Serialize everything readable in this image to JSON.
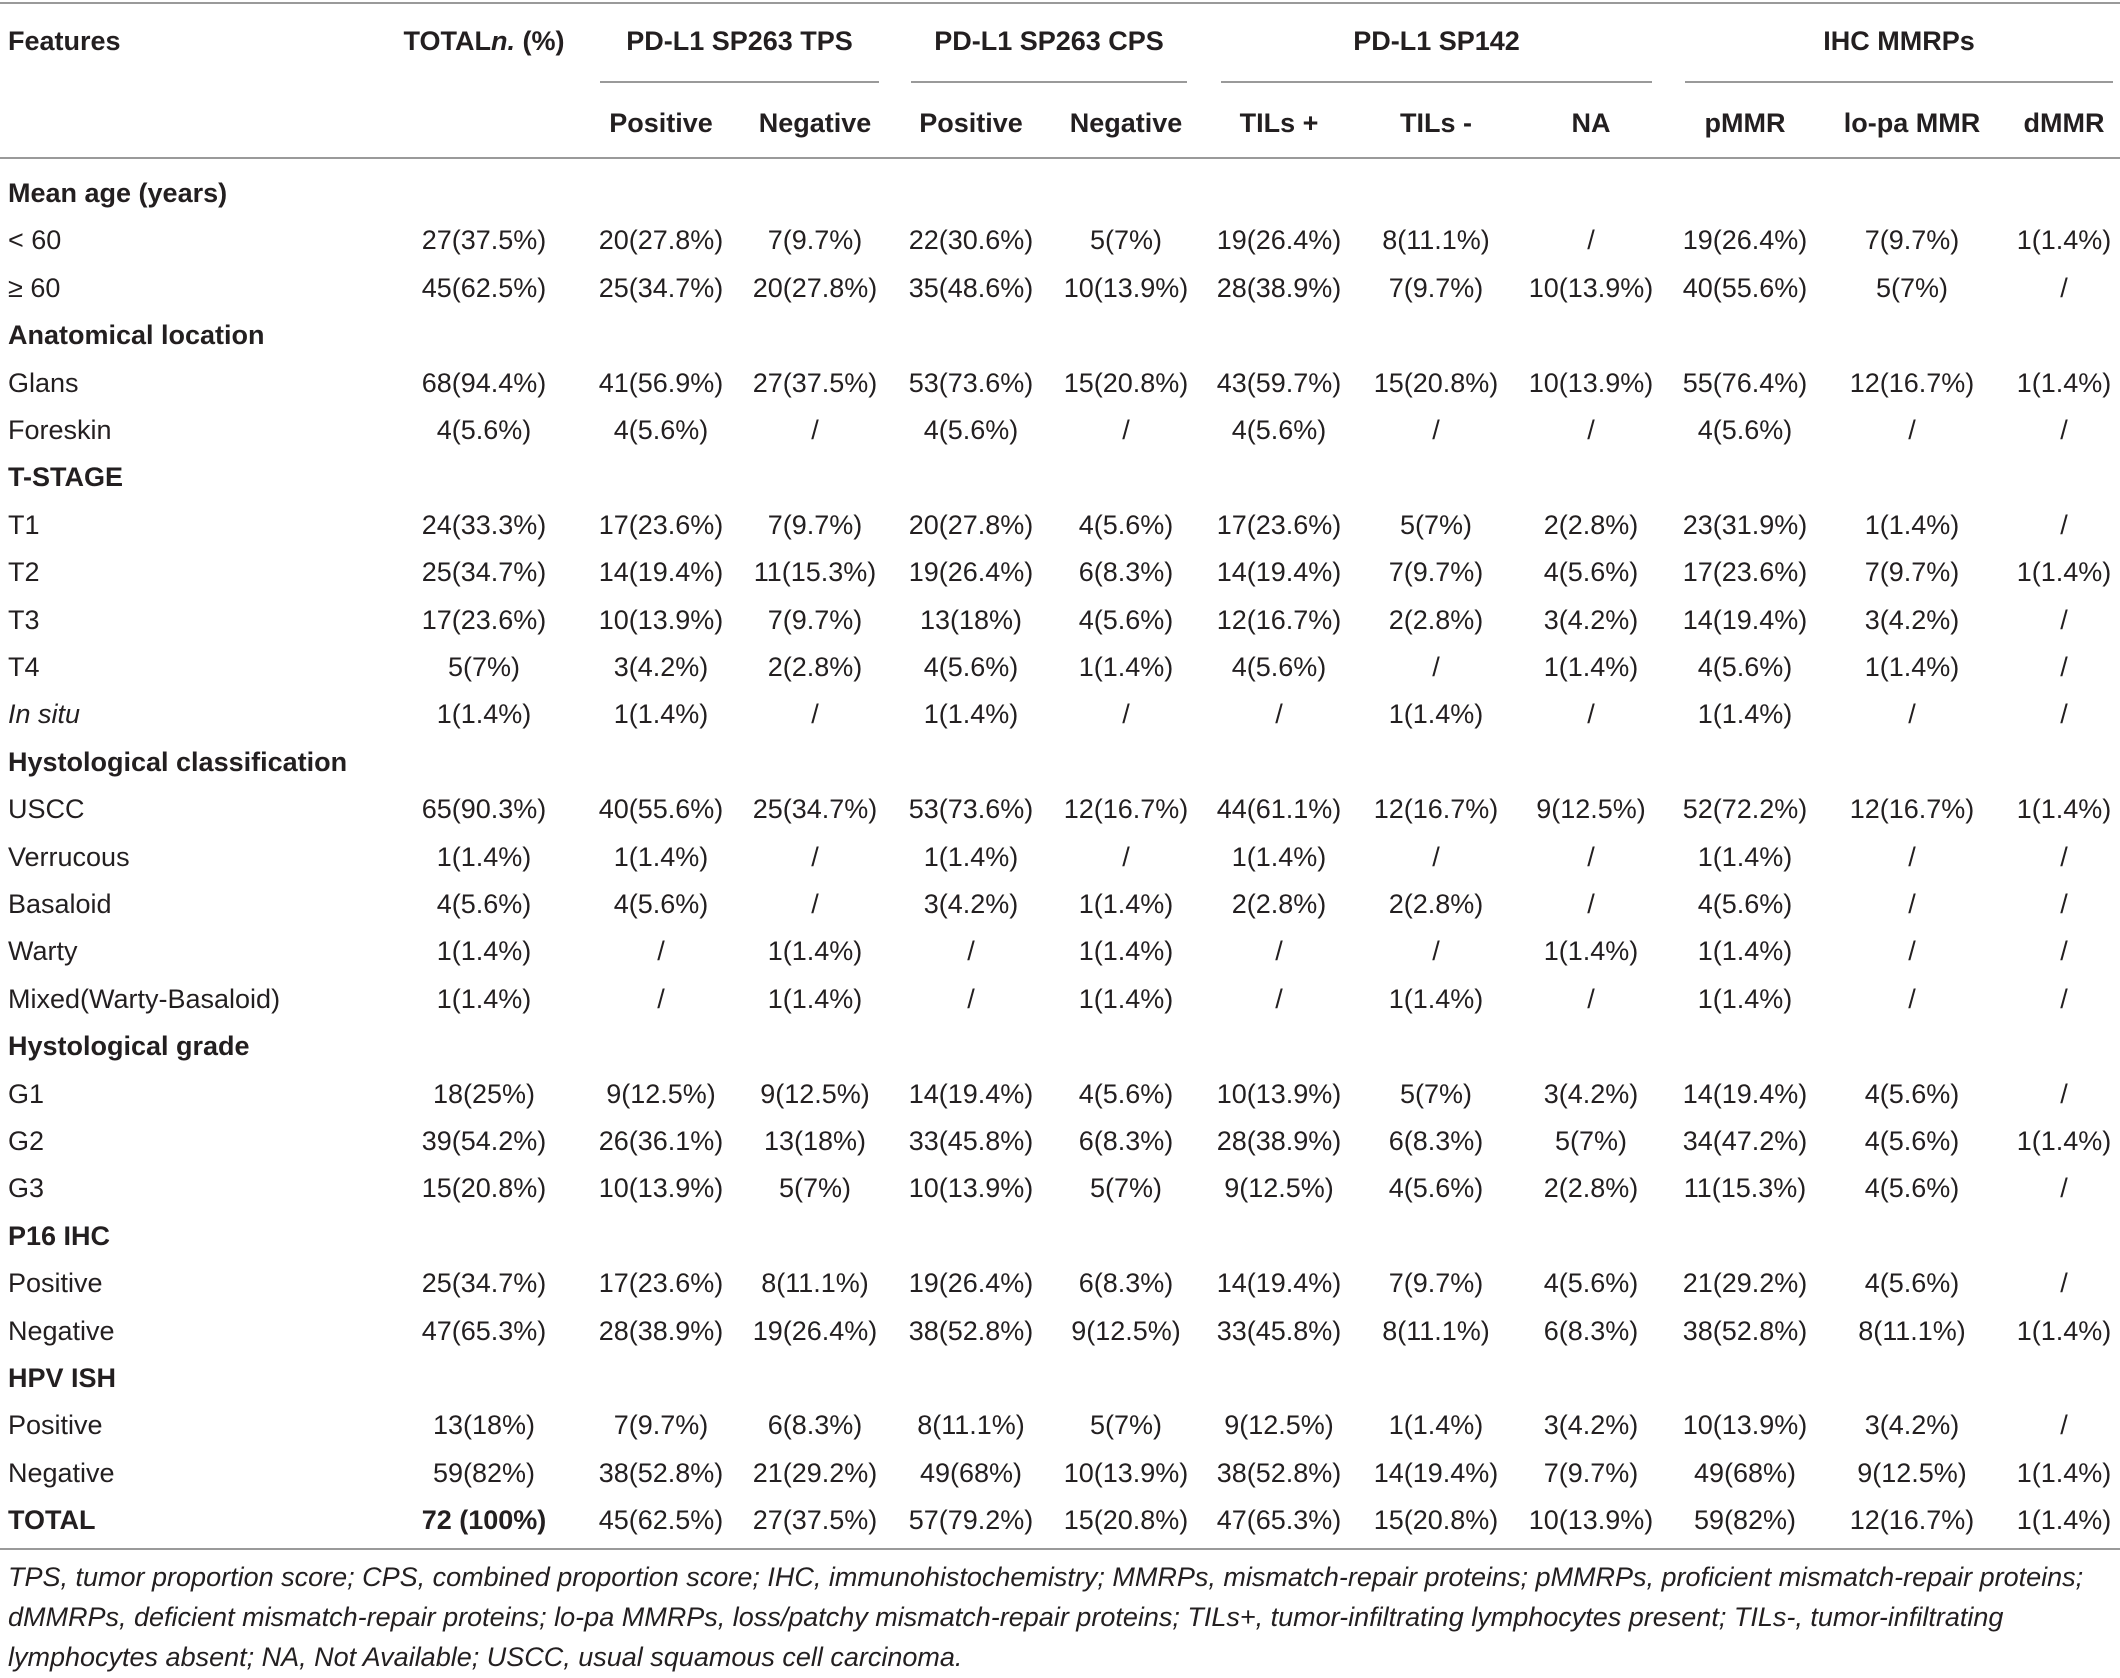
{
  "header": {
    "features": "Features",
    "total": [
      "TOTAL",
      "n.",
      "(%)"
    ],
    "groups": [
      {
        "label": "PD-L1 SP263 TPS",
        "columns": [
          "Positive",
          "Negative"
        ]
      },
      {
        "label": "PD-L1 SP263 CPS",
        "columns": [
          "Positive",
          "Negative"
        ]
      },
      {
        "label": "PD-L1 SP142",
        "columns": [
          "TILs +",
          "TILs -",
          "NA"
        ]
      },
      {
        "label": "IHC MMRPs",
        "columns": [
          "pMMR",
          "lo-pa MMR",
          "dMMR"
        ]
      }
    ]
  },
  "sections": [
    {
      "title": "Mean age (years)",
      "rows": [
        [
          "< 60",
          "27(37.5%)",
          "20(27.8%)",
          "7(9.7%)",
          "22(30.6%)",
          "5(7%)",
          "19(26.4%)",
          "8(11.1%)",
          "/",
          "19(26.4%)",
          "7(9.7%)",
          "1(1.4%)"
        ],
        [
          "≥ 60",
          "45(62.5%)",
          "25(34.7%)",
          "20(27.8%)",
          "35(48.6%)",
          "10(13.9%)",
          "28(38.9%)",
          "7(9.7%)",
          "10(13.9%)",
          "40(55.6%)",
          "5(7%)",
          "/"
        ]
      ]
    },
    {
      "title": "Anatomical location",
      "rows": [
        [
          "Glans",
          "68(94.4%)",
          "41(56.9%)",
          "27(37.5%)",
          "53(73.6%)",
          "15(20.8%)",
          "43(59.7%)",
          "15(20.8%)",
          "10(13.9%)",
          "55(76.4%)",
          "12(16.7%)",
          "1(1.4%)"
        ],
        [
          "Foreskin",
          "4(5.6%)",
          "4(5.6%)",
          "/",
          "4(5.6%)",
          "/",
          "4(5.6%)",
          "/",
          "/",
          "4(5.6%)",
          "/",
          "/"
        ]
      ]
    },
    {
      "title": "T-STAGE",
      "rows": [
        [
          "T1",
          "24(33.3%)",
          "17(23.6%)",
          "7(9.7%)",
          "20(27.8%)",
          "4(5.6%)",
          "17(23.6%)",
          "5(7%)",
          "2(2.8%)",
          "23(31.9%)",
          "1(1.4%)",
          "/"
        ],
        [
          "T2",
          "25(34.7%)",
          "14(19.4%)",
          "11(15.3%)",
          "19(26.4%)",
          "6(8.3%)",
          "14(19.4%)",
          "7(9.7%)",
          "4(5.6%)",
          "17(23.6%)",
          "7(9.7%)",
          "1(1.4%)"
        ],
        [
          "T3",
          "17(23.6%)",
          "10(13.9%)",
          "7(9.7%)",
          "13(18%)",
          "4(5.6%)",
          "12(16.7%)",
          "2(2.8%)",
          "3(4.2%)",
          "14(19.4%)",
          "3(4.2%)",
          "/"
        ],
        [
          "T4",
          "5(7%)",
          "3(4.2%)",
          "2(2.8%)",
          "4(5.6%)",
          "1(1.4%)",
          "4(5.6%)",
          "/",
          "1(1.4%)",
          "4(5.6%)",
          "1(1.4%)",
          "/"
        ],
        [
          "In situ",
          "1(1.4%)",
          "1(1.4%)",
          "/",
          "1(1.4%)",
          "/",
          "/",
          "1(1.4%)",
          "/",
          "1(1.4%)",
          "/",
          "/"
        ]
      ]
    },
    {
      "title": "Hystological classification",
      "rows": [
        [
          "USCC",
          "65(90.3%)",
          "40(55.6%)",
          "25(34.7%)",
          "53(73.6%)",
          "12(16.7%)",
          "44(61.1%)",
          "12(16.7%)",
          "9(12.5%)",
          "52(72.2%)",
          "12(16.7%)",
          "1(1.4%)"
        ],
        [
          "Verrucous",
          "1(1.4%)",
          "1(1.4%)",
          "/",
          "1(1.4%)",
          "/",
          "1(1.4%)",
          "/",
          "/",
          "1(1.4%)",
          "/",
          "/"
        ],
        [
          "Basaloid",
          "4(5.6%)",
          "4(5.6%)",
          "/",
          "3(4.2%)",
          "1(1.4%)",
          "2(2.8%)",
          "2(2.8%)",
          "/",
          "4(5.6%)",
          "/",
          "/"
        ],
        [
          "Warty",
          "1(1.4%)",
          "/",
          "1(1.4%)",
          "/",
          "1(1.4%)",
          "/",
          "/",
          "1(1.4%)",
          "1(1.4%)",
          "/",
          "/"
        ],
        [
          "Mixed(Warty-Basaloid)",
          "1(1.4%)",
          "/",
          "1(1.4%)",
          "/",
          "1(1.4%)",
          "/",
          "1(1.4%)",
          "/",
          "1(1.4%)",
          "/",
          "/"
        ]
      ]
    },
    {
      "title": "Hystological grade",
      "rows": [
        [
          "G1",
          "18(25%)",
          "9(12.5%)",
          "9(12.5%)",
          "14(19.4%)",
          "4(5.6%)",
          "10(13.9%)",
          "5(7%)",
          "3(4.2%)",
          "14(19.4%)",
          "4(5.6%)",
          "/"
        ],
        [
          "G2",
          "39(54.2%)",
          "26(36.1%)",
          "13(18%)",
          "33(45.8%)",
          "6(8.3%)",
          "28(38.9%)",
          "6(8.3%)",
          "5(7%)",
          "34(47.2%)",
          "4(5.6%)",
          "1(1.4%)"
        ],
        [
          "G3",
          "15(20.8%)",
          "10(13.9%)",
          "5(7%)",
          "10(13.9%)",
          "5(7%)",
          "9(12.5%)",
          "4(5.6%)",
          "2(2.8%)",
          "11(15.3%)",
          "4(5.6%)",
          "/"
        ]
      ]
    },
    {
      "title": "P16 IHC",
      "rows": [
        [
          "Positive",
          "25(34.7%)",
          "17(23.6%)",
          "8(11.1%)",
          "19(26.4%)",
          "6(8.3%)",
          "14(19.4%)",
          "7(9.7%)",
          "4(5.6%)",
          "21(29.2%)",
          "4(5.6%)",
          "/"
        ],
        [
          "Negative",
          "47(65.3%)",
          "28(38.9%)",
          "19(26.4%)",
          "38(52.8%)",
          "9(12.5%)",
          "33(45.8%)",
          "8(11.1%)",
          "6(8.3%)",
          "38(52.8%)",
          "8(11.1%)",
          "1(1.4%)"
        ]
      ]
    },
    {
      "title": "HPV ISH",
      "rows": [
        [
          "Positive",
          "13(18%)",
          "7(9.7%)",
          "6(8.3%)",
          "8(11.1%)",
          "5(7%)",
          "9(12.5%)",
          "1(1.4%)",
          "3(4.2%)",
          "10(13.9%)",
          "3(4.2%)",
          "/"
        ],
        [
          "Negative",
          "59(82%)",
          "38(52.8%)",
          "21(29.2%)",
          "49(68%)",
          "10(13.9%)",
          "38(52.8%)",
          "14(19.4%)",
          "7(9.7%)",
          "49(68%)",
          "9(12.5%)",
          "1(1.4%)"
        ]
      ]
    }
  ],
  "total_row": [
    "TOTAL",
    "72 (100%)",
    "45(62.5%)",
    "27(37.5%)",
    "57(79.2%)",
    "15(20.8%)",
    "47(65.3%)",
    "15(20.8%)",
    "10(13.9%)",
    "59(82%)",
    "12(16.7%)",
    "1(1.4%)"
  ],
  "footnote": "TPS, tumor proportion score; CPS, combined proportion score; IHC, immunohistochemistry; MMRPs, mismatch-repair proteins; pMMRPs, proficient mismatch-repair proteins; dMMRPs, deficient mismatch-repair proteins; lo-pa MMRPs, loss/patchy mismatch-repair proteins; TILs+, tumor-infiltrating lymphocytes present; TILs-, tumor-infiltrating lymphocytes absent; NA, Not Available; USCC, usual squamous cell carcinoma."
}
